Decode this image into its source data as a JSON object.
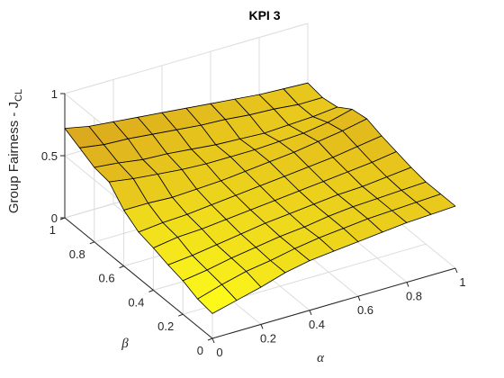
{
  "chart_data": {
    "type": "surface",
    "title": "KPI 3",
    "xlabel": "α",
    "ylabel": "β",
    "zlabel_main": "Group Fairness - J",
    "zlabel_sub": "CL",
    "xlim": [
      0,
      1
    ],
    "ylim": [
      0,
      1
    ],
    "zlim": [
      0,
      1
    ],
    "x_ticks": [
      "0",
      "0.2",
      "0.4",
      "0.6",
      "0.8",
      "1"
    ],
    "y_ticks": [
      "0",
      "0.2",
      "0.4",
      "0.6",
      "0.8",
      "1"
    ],
    "z_ticks": [
      "0",
      "0.5",
      "1"
    ],
    "grid": true,
    "x": [
      0,
      0.1,
      0.2,
      0.3,
      0.4,
      0.5,
      0.6,
      0.7,
      0.8,
      0.9,
      1.0
    ],
    "y": [
      0,
      0.1,
      0.2,
      0.3,
      0.4,
      0.5,
      0.6,
      0.7,
      0.8,
      0.9,
      1.0
    ],
    "z": [
      [
        0.2,
        0.25,
        0.3,
        0.36,
        0.4,
        0.42,
        0.44,
        0.46,
        0.48,
        0.49,
        0.5
      ],
      [
        0.22,
        0.28,
        0.33,
        0.36,
        0.4,
        0.43,
        0.45,
        0.47,
        0.48,
        0.49,
        0.5
      ],
      [
        0.27,
        0.3,
        0.34,
        0.37,
        0.4,
        0.42,
        0.45,
        0.47,
        0.48,
        0.49,
        0.5
      ],
      [
        0.3,
        0.32,
        0.35,
        0.38,
        0.41,
        0.43,
        0.45,
        0.47,
        0.48,
        0.5,
        0.52
      ],
      [
        0.34,
        0.37,
        0.38,
        0.4,
        0.42,
        0.44,
        0.46,
        0.48,
        0.5,
        0.52,
        0.55
      ],
      [
        0.37,
        0.39,
        0.4,
        0.42,
        0.44,
        0.46,
        0.48,
        0.5,
        0.52,
        0.55,
        0.58
      ],
      [
        0.45,
        0.45,
        0.44,
        0.45,
        0.46,
        0.48,
        0.5,
        0.52,
        0.55,
        0.58,
        0.62
      ],
      [
        0.58,
        0.55,
        0.53,
        0.51,
        0.5,
        0.5,
        0.5,
        0.51,
        0.52,
        0.55,
        0.6
      ],
      [
        0.6,
        0.58,
        0.55,
        0.54,
        0.52,
        0.5,
        0.49,
        0.48,
        0.49,
        0.5,
        0.52
      ],
      [
        0.66,
        0.63,
        0.62,
        0.6,
        0.58,
        0.56,
        0.55,
        0.53,
        0.52,
        0.5,
        0.5
      ],
      [
        0.72,
        0.68,
        0.66,
        0.64,
        0.62,
        0.6,
        0.58,
        0.56,
        0.54,
        0.53,
        0.52
      ]
    ],
    "colors": {
      "low": "#ffff1a",
      "high": "#d8a21e",
      "edge": "#000000",
      "grid": "#dcdcdc",
      "axis": "#262626"
    }
  }
}
